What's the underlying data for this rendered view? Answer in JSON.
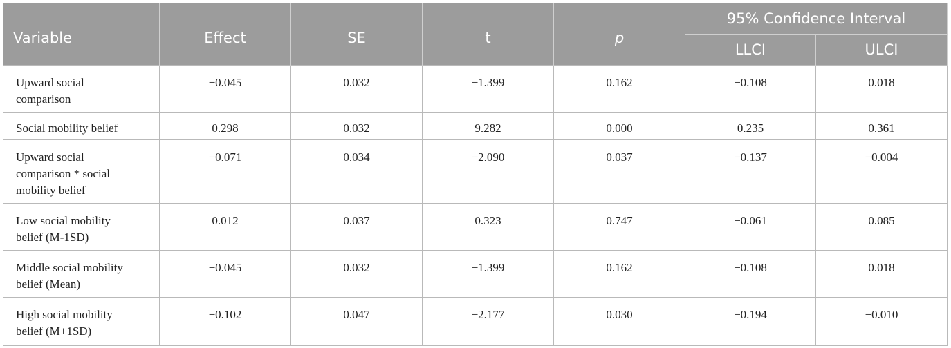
{
  "header": {
    "variable": "Variable",
    "effect": "Effect",
    "se": "SE",
    "t": "t",
    "p": "p",
    "ci": "95% Confidence Interval",
    "llci": "LLCI",
    "ulci": "ULCI"
  },
  "rows": [
    {
      "variable": "Upward social comparison",
      "effect": "−0.045",
      "se": "0.032",
      "t": "−1.399",
      "p": "0.162",
      "llci": "−0.108",
      "ulci": "0.018"
    },
    {
      "variable": "Social mobility belief",
      "effect": "0.298",
      "se": "0.032",
      "t": "9.282",
      "p": "0.000",
      "llci": "0.235",
      "ulci": "0.361"
    },
    {
      "variable": "Upward social comparison * social mobility belief",
      "effect": "−0.071",
      "se": "0.034",
      "t": "−2.090",
      "p": "0.037",
      "llci": "−0.137",
      "ulci": "−0.004"
    },
    {
      "variable": "Low social mobility belief (M-1SD)",
      "effect": "0.012",
      "se": "0.037",
      "t": "0.323",
      "p": "0.747",
      "llci": "−0.061",
      "ulci": "0.085"
    },
    {
      "variable": "Middle social mobility belief (Mean)",
      "effect": "−0.045",
      "se": "0.032",
      "t": "−1.399",
      "p": "0.162",
      "llci": "−0.108",
      "ulci": "0.018"
    },
    {
      "variable": "High social mobility belief (M+1SD)",
      "effect": "−0.102",
      "se": "0.047",
      "t": "−2.177",
      "p": "0.030",
      "llci": "−0.194",
      "ulci": "−0.010"
    }
  ]
}
